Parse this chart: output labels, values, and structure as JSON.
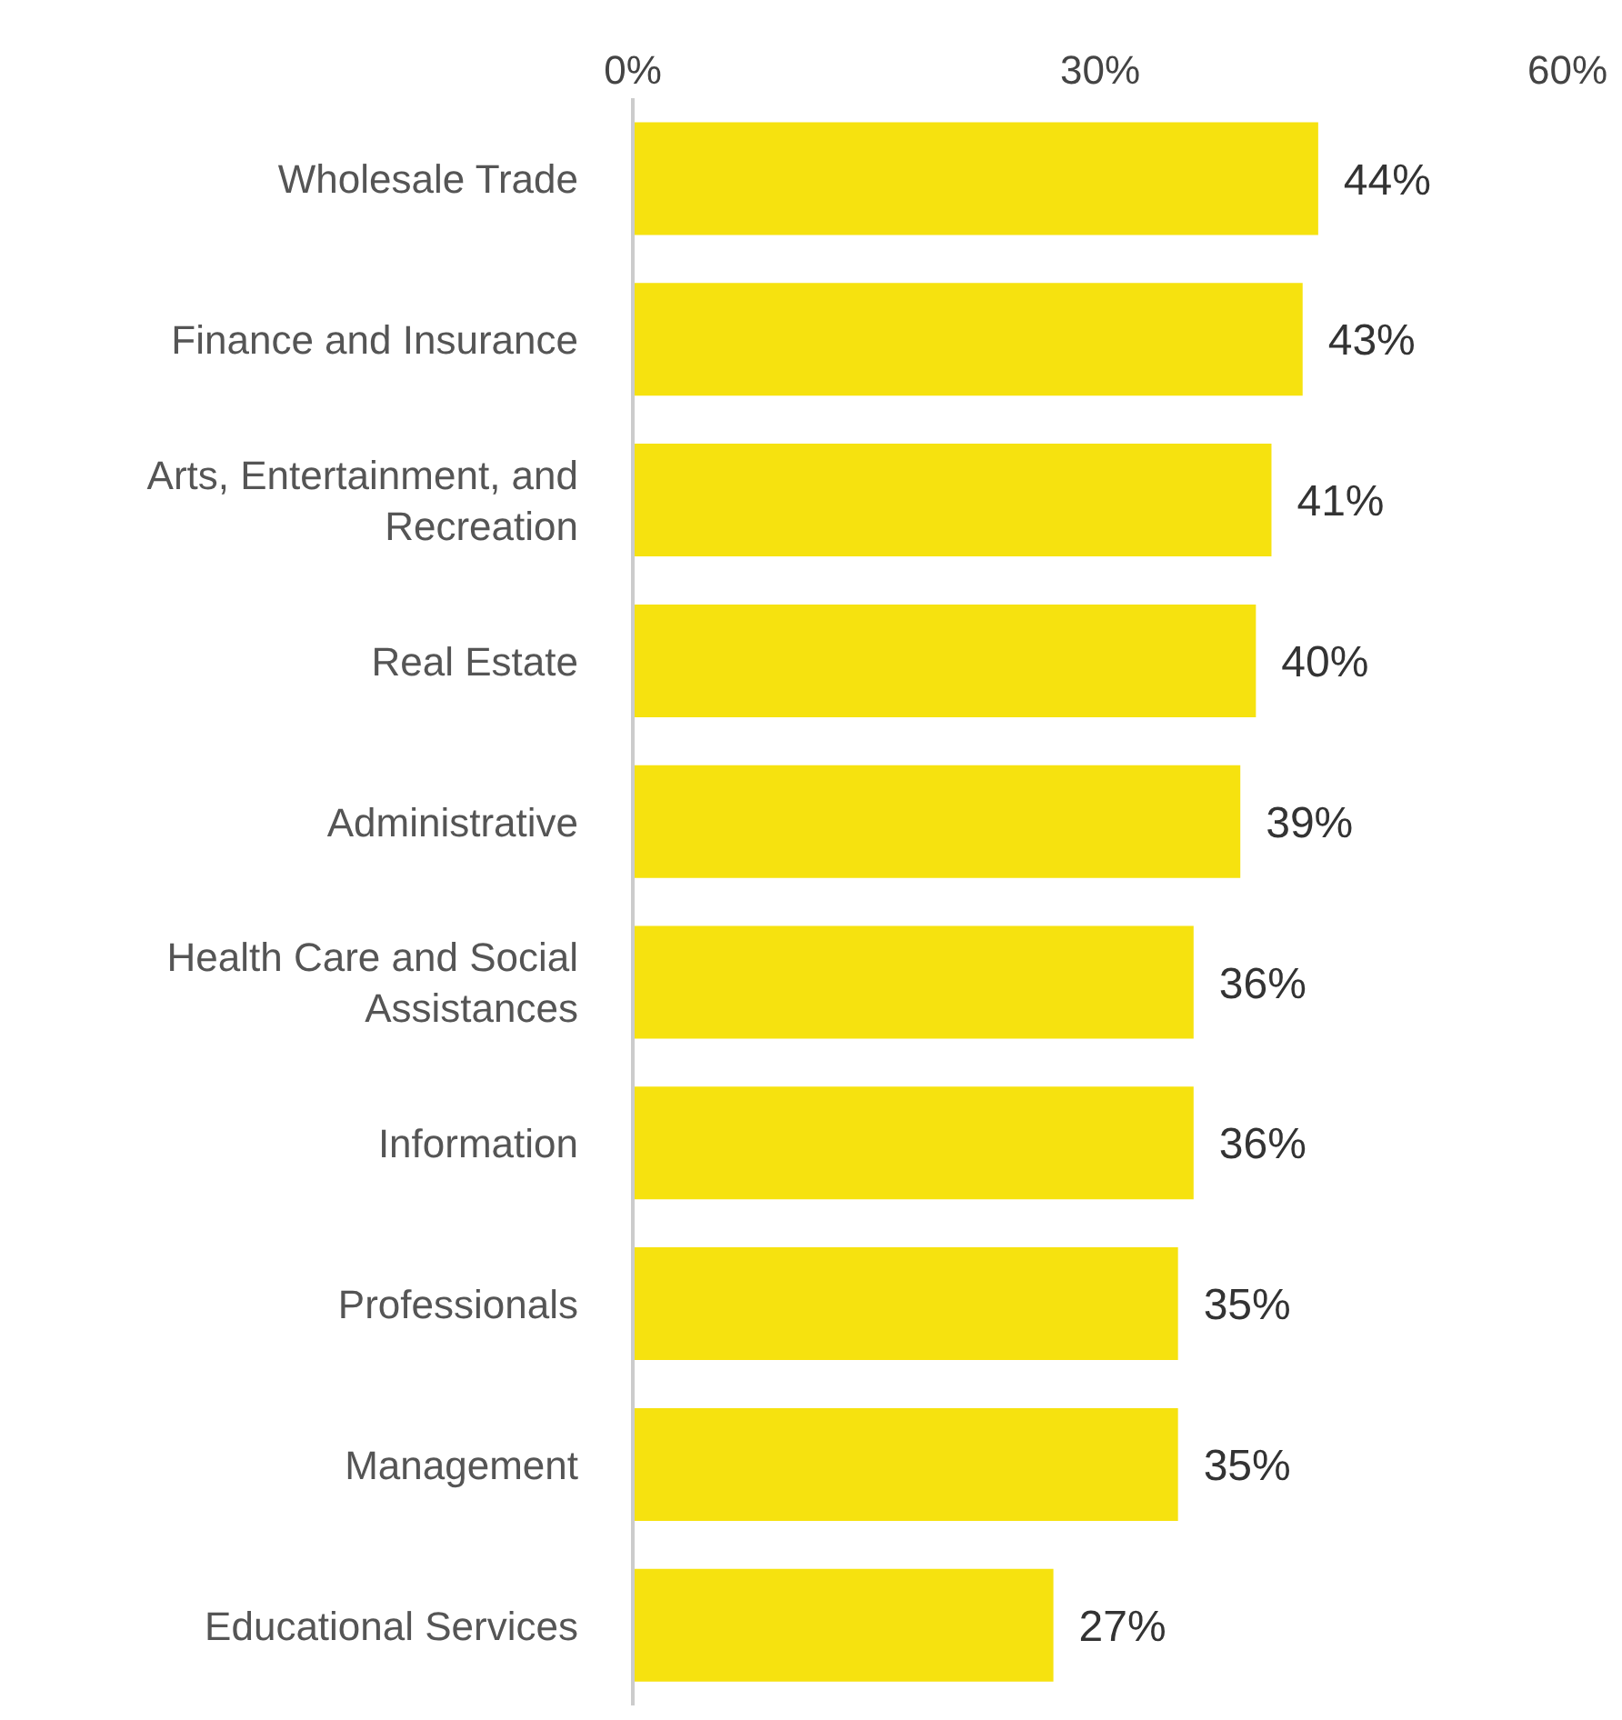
{
  "chart_data": {
    "type": "bar",
    "orientation": "horizontal",
    "categories": [
      "Wholesale Trade",
      "Finance and Insurance",
      "Arts, Entertainment, and Recreation",
      "Real Estate",
      "Administrative",
      "Health Care and Social Assistances",
      "Information",
      "Professionals",
      "Management",
      "Educational Services"
    ],
    "values": [
      44,
      43,
      41,
      40,
      39,
      36,
      36,
      35,
      35,
      27
    ],
    "value_labels": [
      "44%",
      "43%",
      "41%",
      "40%",
      "39%",
      "36%",
      "36%",
      "35%",
      "35%",
      "27%"
    ],
    "color": "#f6e20f",
    "xlim": [
      0,
      60
    ],
    "xticks": [
      {
        "value": 0,
        "label": "0%"
      },
      {
        "value": 30,
        "label": "30%"
      },
      {
        "value": 60,
        "label": "60%"
      }
    ]
  }
}
